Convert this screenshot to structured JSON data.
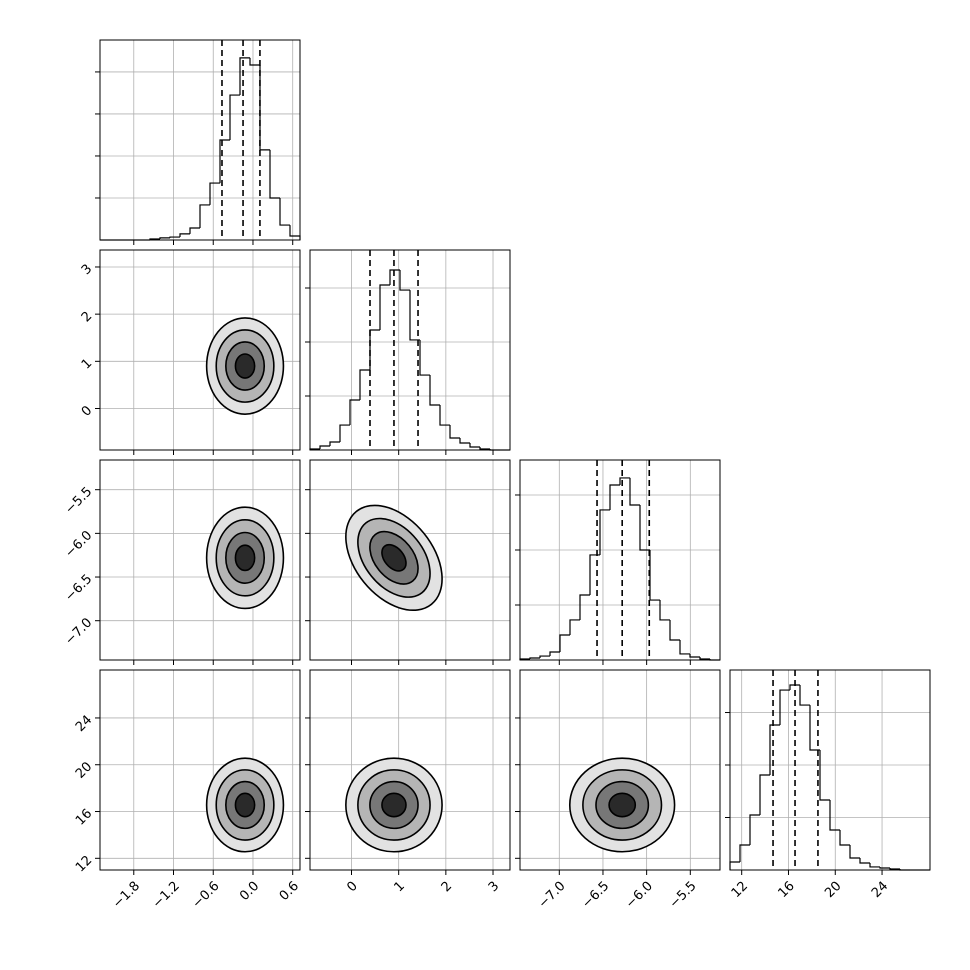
{
  "chart_data": {
    "type": "corner",
    "levels": [
      0.5,
      1,
      1.5,
      2
    ],
    "parameters": [
      {
        "xlim": [
          -2.31,
          0.71
        ],
        "xticks": [
          {
            "value": -1.8,
            "label": "−1.8"
          },
          {
            "value": -1.2,
            "label": "−1.2"
          },
          {
            "value": -0.6,
            "label": "−0.6"
          },
          {
            "value": 0,
            "label": "0.0"
          },
          0.6
        ],
        "quantiles": [
          -0.468,
          -0.15,
          0.105
        ],
        "hist": {
          "bins": [
            -2.31,
            -2.159,
            -2.008,
            -1.857,
            -1.706,
            -1.555,
            -1.404,
            -1.253,
            -1.102,
            -0.951,
            -0.8,
            -0.649,
            -0.498,
            -0.347,
            -0.196,
            -0.045,
            0.106,
            0.257,
            0.408,
            0.559,
            0.71
          ],
          "counts": [
            0,
            0,
            0,
            0,
            0,
            5,
            10,
            14,
            29,
            57,
            167,
            271,
            476,
            690,
            867,
            833,
            429,
            200,
            71,
            19
          ],
          "ylim": [
            0,
            952
          ],
          "yticks": [
            200,
            400,
            600,
            800
          ]
        }
      },
      {
        "xlim": [
          -0.88,
          3.36
        ],
        "xticks": [
          0,
          1,
          2,
          3
        ],
        "quantiles": [
          0.392,
          0.9,
          1.41
        ],
        "hist": {
          "bins": [
            -0.88,
            -0.668,
            -0.456,
            -0.244,
            -0.032,
            0.18,
            0.392,
            0.604,
            0.816,
            1.028,
            1.24,
            1.452,
            1.664,
            1.876,
            2.088,
            2.3,
            2.512,
            2.724,
            2.936,
            3.148,
            3.36
          ],
          "counts": [
            9,
            37,
            74,
            231,
            463,
            741,
            1111,
            1528,
            1667,
            1481,
            1019,
            694,
            417,
            231,
            111,
            65,
            28,
            9,
            0,
            0
          ],
          "ylim": [
            0,
            1852
          ],
          "yticks": [
            500,
            1000,
            1500
          ]
        }
      },
      {
        "xlim": [
          -7.45,
          -5.16
        ],
        "xticks": [
          {
            "value": -7.0,
            "label": "−7.0"
          },
          {
            "value": -6.5,
            "label": "−6.5"
          },
          {
            "value": -6.0,
            "label": "−6.0"
          },
          {
            "value": -5.5,
            "label": "−5.5"
          }
        ],
        "quantiles": [
          -6.568,
          -6.28,
          -5.97
        ],
        "hist": {
          "bins": [
            -7.45,
            -7.3355,
            -7.221,
            -7.1065,
            -6.992,
            -6.8775,
            -6.763,
            -6.6485,
            -6.534,
            -6.4195,
            -6.305,
            -6.1905,
            -6.076,
            -5.9615,
            -5.847,
            -5.7325,
            -5.618,
            -5.5035,
            -5.389,
            -5.2745,
            -5.16
          ],
          "counts": [
            9,
            18,
            36,
            73,
            227,
            364,
            591,
            955,
            1364,
            1591,
            1655,
            1409,
            1000,
            545,
            364,
            182,
            55,
            27,
            9,
            0
          ],
          "ylim": [
            0,
            1818
          ],
          "yticks": [
            500,
            1000,
            1500
          ]
        }
      },
      {
        "xlim": [
          11.0,
          28.1
        ],
        "xticks": [
          12,
          16,
          20,
          24
        ],
        "quantiles": [
          14.68,
          16.56,
          18.52
        ],
        "hist": {
          "bins": [
            11,
            11.855,
            12.71,
            13.565,
            14.42,
            15.275,
            16.13,
            16.985,
            17.84,
            18.695,
            19.55,
            20.405,
            21.26,
            22.115,
            22.97,
            23.825,
            24.68,
            25.535,
            26.39,
            27.245,
            28.1
          ],
          "counts": [
            76,
            238,
            524,
            905,
            1381,
            1714,
            1762,
            1571,
            1143,
            667,
            381,
            238,
            114,
            67,
            29,
            19,
            10,
            0,
            0,
            0
          ],
          "ylim": [
            0,
            1905
          ],
          "yticks": [
            500,
            1000,
            1500
          ]
        }
      }
    ],
    "panels": [
      {
        "x": 0,
        "y": 1,
        "center": [
          -0.12,
          0.9
        ],
        "sigma": [
          0.29,
          0.51
        ],
        "rho": 0
      },
      {
        "x": 0,
        "y": 2,
        "center": [
          -0.12,
          -6.28
        ],
        "sigma": [
          0.29,
          0.29
        ],
        "rho": 0
      },
      {
        "x": 1,
        "y": 2,
        "center": [
          0.9,
          -6.28
        ],
        "sigma": [
          0.51,
          0.3
        ],
        "rho": -0.4
      },
      {
        "x": 0,
        "y": 3,
        "center": [
          -0.12,
          16.56
        ],
        "sigma": [
          0.29,
          2.0
        ],
        "rho": 0
      },
      {
        "x": 1,
        "y": 3,
        "center": [
          0.9,
          16.56
        ],
        "sigma": [
          0.51,
          2.0
        ],
        "rho": 0
      },
      {
        "x": 2,
        "y": 3,
        "center": [
          -6.28,
          16.56
        ],
        "sigma": [
          0.3,
          2.0
        ],
        "rho": 0
      }
    ]
  }
}
